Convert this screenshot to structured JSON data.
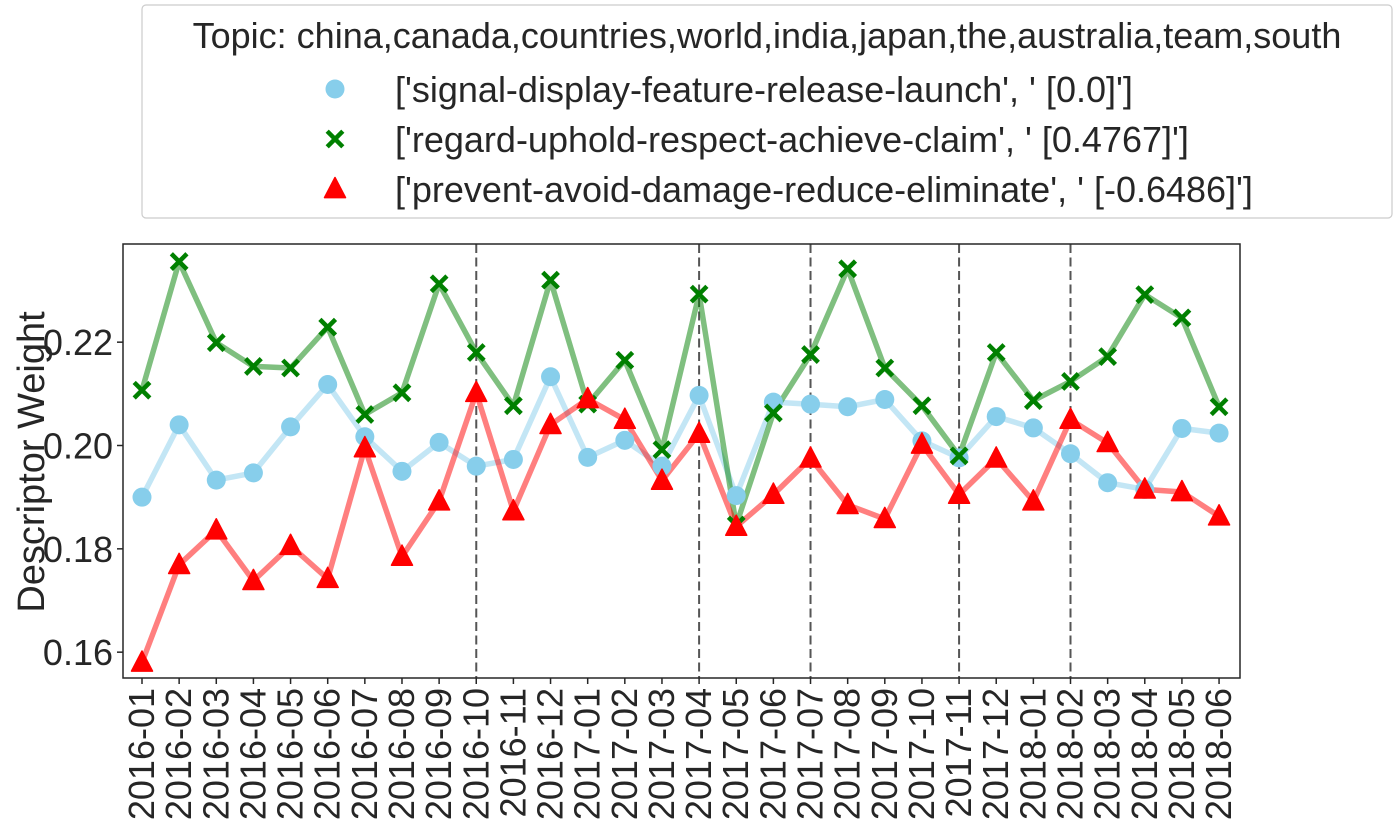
{
  "chart_data": {
    "type": "line",
    "title": "",
    "xlabel": "",
    "ylabel": "Descriptor Weight",
    "ylim": [
      0.155,
      0.239
    ],
    "yticks": [
      0.16,
      0.18,
      0.2,
      0.22
    ],
    "ytick_labels": [
      "0.16",
      "0.18",
      "0.20",
      "0.22"
    ],
    "grid": false,
    "legend_title": "Topic: china,canada,countries,world,india,japan,the,australia,team,south",
    "legend_position": "top, outside plot",
    "categories": [
      "2016-01",
      "2016-02",
      "2016-03",
      "2016-04",
      "2016-05",
      "2016-06",
      "2016-07",
      "2016-08",
      "2016-09",
      "2016-10",
      "2016-11",
      "2016-12",
      "2017-01",
      "2017-02",
      "2017-03",
      "2017-04",
      "2017-05",
      "2017-06",
      "2017-07",
      "2017-08",
      "2017-09",
      "2017-10",
      "2017-11",
      "2017-12",
      "2018-01",
      "2018-02",
      "2018-03",
      "2018-04",
      "2018-05",
      "2018-06"
    ],
    "vlines": [
      "2016-10",
      "2017-04",
      "2017-07",
      "2017-11",
      "2018-02"
    ],
    "series": [
      {
        "name": "['signal-display-feature-release-launch', ' [0.0]']",
        "color": "#87ceeb",
        "marker": "circle",
        "values": [
          0.19,
          0.204,
          0.1933,
          0.1947,
          0.2036,
          0.2118,
          0.2017,
          0.195,
          0.2006,
          0.196,
          0.1973,
          0.2133,
          0.1977,
          0.201,
          0.196,
          0.2097,
          0.1903,
          0.2084,
          0.208,
          0.2075,
          0.2089,
          0.2009,
          0.1976,
          0.2056,
          0.2034,
          0.1984,
          0.1928,
          0.1915,
          0.2033,
          0.2024
        ]
      },
      {
        "name": "['regard-uphold-respect-achieve-claim', ' [0.4767]']",
        "color": "#008000",
        "marker": "x",
        "values": [
          0.2107,
          0.2356,
          0.2199,
          0.2153,
          0.215,
          0.2229,
          0.206,
          0.2102,
          0.2313,
          0.218,
          0.2077,
          0.232,
          0.208,
          0.2165,
          0.1992,
          0.2293,
          0.1846,
          0.2063,
          0.2176,
          0.2342,
          0.215,
          0.2077,
          0.198,
          0.218,
          0.2087,
          0.2124,
          0.2172,
          0.2292,
          0.2247,
          0.2075
        ]
      },
      {
        "name": "['prevent-avoid-damage-reduce-eliminate', ' [-0.6486]']",
        "color": "#ff0000",
        "marker": "triangle",
        "values": [
          0.158,
          0.1769,
          0.1836,
          0.1738,
          0.1806,
          0.1742,
          0.1995,
          0.1785,
          0.1892,
          0.2102,
          0.1873,
          0.204,
          0.209,
          0.205,
          0.1932,
          0.2023,
          0.1843,
          0.1905,
          0.1975,
          0.1885,
          0.1858,
          0.2002,
          0.1905,
          0.1975,
          0.1892,
          0.205,
          0.2005,
          0.1915,
          0.191,
          0.1863
        ]
      }
    ]
  }
}
